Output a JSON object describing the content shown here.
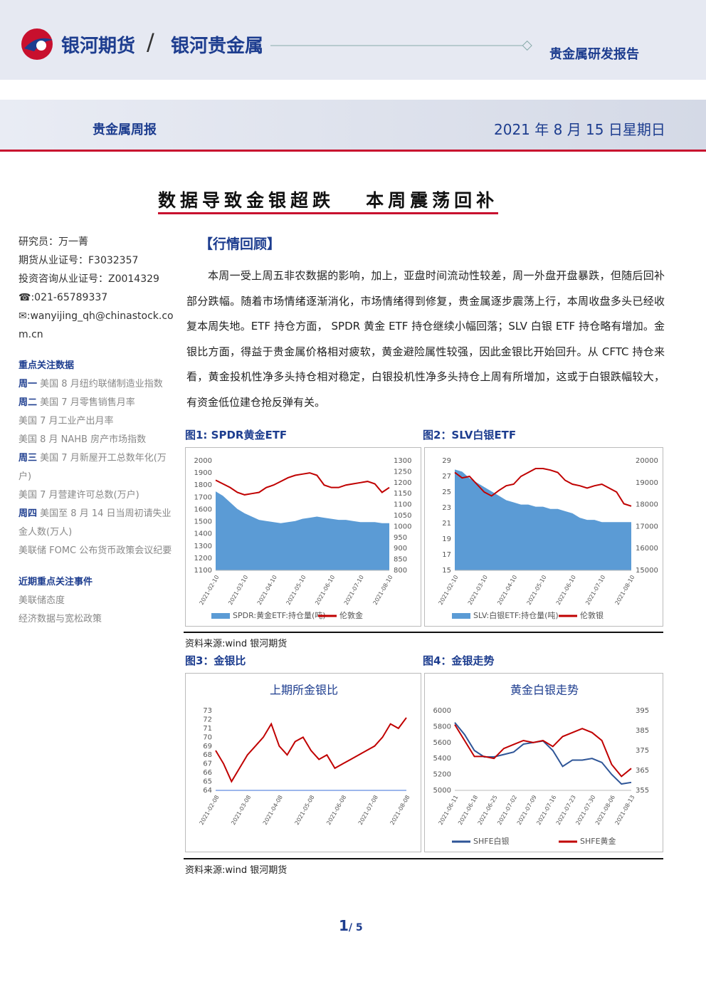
{
  "header": {
    "brand": "银河期货",
    "sub_brand": "银河贵金属",
    "report_type": "贵金属研发报告",
    "section": "贵金属周报",
    "date": "2021 年 8 月 15 日星期日"
  },
  "title": "数据导致金银超跌   本周震荡回补",
  "sidebar": {
    "info": [
      "研究员：万一菁",
      "期货从业证号：F3032357",
      "投资咨询从业证号：Z0014329",
      "☎:021-65789337",
      "✉:wanyijing_qh@chinastock.com.cn"
    ],
    "key_data_heading": "重点关注数据",
    "key_data": [
      {
        "day": "周一",
        "text": "美国 8 月纽约联储制造业指数"
      },
      {
        "day": "周二",
        "text": "美国 7 月零售销售月率"
      },
      {
        "text": "美国 7 月工业产出月率"
      },
      {
        "text": "美国 8 月 NAHB 房产市场指数"
      },
      {
        "day": "周三",
        "text": "美国 7 月新屋开工总数年化(万户)"
      },
      {
        "text": "美国 7 月营建许可总数(万户)"
      },
      {
        "day": "周四",
        "text": "美国至 8 月 14 日当周初请失业金人数(万人)"
      },
      {
        "text": "美联储 FOMC 公布货币政策会议纪要"
      }
    ],
    "events_heading": "近期重点关注事件",
    "events": [
      "美联储态度",
      "经济数据与宽松政策"
    ]
  },
  "section_heading": "【行情回顾】",
  "paragraph": "本周一受上周五非农数据的影响，加上，亚盘时间流动性较差，周一外盘开盘暴跌，但随后回补部分跌幅。随着市场情绪逐渐消化，市场情绪得到修复，贵金属逐步震荡上行，本周收盘多头已经收复本周失地。ETF 持仓方面， SPDR 黄金 ETF 持仓继续小幅回落；SLV 白银 ETF 持仓略有增加。金银比方面，得益于贵金属价格相对疲软，黄金避险属性较强，因此金银比开始回升。从 CFTC 持仓来看，黄金投机性净多头持仓相对稳定，白银投机性净多头持仓上周有所增加，这或于白银跌幅较大，有资金低位建仓抢反弹有关。",
  "figures": [
    {
      "caption": "图1: SPDR黄金ETF",
      "chart_data": {
        "type": "combo",
        "legend": "bottom",
        "categories": [
          "2021-02-10",
          null,
          null,
          null,
          "2021-03-10",
          null,
          null,
          null,
          "2021-04-10",
          null,
          null,
          null,
          "2021-05-10",
          null,
          null,
          null,
          "2021-06-10",
          null,
          null,
          null,
          "2021-07-10",
          null,
          null,
          null,
          "2021-08-10"
        ],
        "ylim": [
          1100,
          2000
        ],
        "yticks": [
          1100,
          1200,
          1300,
          1400,
          1500,
          1600,
          1700,
          1800,
          1900,
          2000
        ],
        "y2lim": [
          800,
          1300
        ],
        "y2ticks": [
          800,
          850,
          900,
          950,
          1000,
          1050,
          1100,
          1150,
          1200,
          1250,
          1300
        ],
        "series": [
          {
            "name": "SPDR:黄金ETF:持仓量(吨)",
            "type": "area",
            "axis": "y2",
            "color": "#5b9bd5",
            "values": [
              1160,
              1140,
              1110,
              1080,
              1060,
              1045,
              1030,
              1025,
              1020,
              1015,
              1020,
              1025,
              1035,
              1040,
              1045,
              1040,
              1035,
              1030,
              1030,
              1025,
              1020,
              1020,
              1020,
              1015,
              1015
            ]
          },
          {
            "name": "伦敦金",
            "type": "line",
            "color": "#c00000",
            "values": [
              1840,
              1810,
              1780,
              1740,
              1720,
              1730,
              1740,
              1780,
              1800,
              1830,
              1860,
              1880,
              1890,
              1900,
              1880,
              1800,
              1780,
              1780,
              1800,
              1810,
              1820,
              1830,
              1810,
              1740,
              1780
            ]
          }
        ]
      }
    },
    {
      "caption": "图2：SLV白银ETF",
      "chart_data": {
        "type": "combo",
        "legend": "bottom",
        "categories": [
          "2021-02-10",
          null,
          null,
          null,
          "2021-03-10",
          null,
          null,
          null,
          "2021-04-10",
          null,
          null,
          null,
          "2021-05-10",
          null,
          null,
          null,
          "2021-06-10",
          null,
          null,
          null,
          "2021-07-10",
          null,
          null,
          null,
          "2021-08-10"
        ],
        "ylim": [
          15,
          29
        ],
        "yticks": [
          15,
          17,
          19,
          21,
          23,
          25,
          27,
          29
        ],
        "y2lim": [
          15000,
          20000
        ],
        "y2ticks": [
          15000,
          16000,
          17000,
          18000,
          19000,
          20000
        ],
        "series": [
          {
            "name": "SLV:白银ETF:持仓量(吨)",
            "type": "area",
            "axis": "y2",
            "color": "#5b9bd5",
            "values": [
              19600,
              19500,
              19200,
              19000,
              18800,
              18600,
              18400,
              18200,
              18100,
              18000,
              18000,
              17900,
              17900,
              17800,
              17800,
              17700,
              17600,
              17400,
              17300,
              17300,
              17200,
              17200,
              17200,
              17200,
              17200
            ]
          },
          {
            "name": "伦敦银",
            "type": "line",
            "color": "#c00000",
            "values": [
              27.5,
              26.8,
              27.0,
              26.0,
              25.0,
              24.5,
              25.2,
              25.8,
              26.0,
              27.0,
              27.5,
              28.0,
              28.0,
              27.8,
              27.5,
              26.5,
              26.0,
              25.8,
              25.5,
              25.8,
              26.0,
              25.5,
              25.0,
              23.5,
              23.2
            ]
          }
        ]
      }
    },
    {
      "caption": "图3：金银比",
      "chart_data": {
        "type": "combo",
        "title": "上期所金银比",
        "categories": [
          "2021-02-08",
          null,
          null,
          null,
          "2021-03-08",
          null,
          null,
          null,
          "2021-04-08",
          null,
          null,
          null,
          "2021-05-08",
          null,
          null,
          null,
          "2021-06-08",
          null,
          null,
          null,
          "2021-07-08",
          null,
          null,
          null,
          "2021-08-08"
        ],
        "ylim": [
          64,
          73
        ],
        "yticks": [
          64,
          65,
          66,
          67,
          68,
          69,
          70,
          71,
          72,
          73
        ],
        "series": [
          {
            "type": "line",
            "color": "#c00000",
            "values": [
              68.5,
              67,
              65,
              66.5,
              68,
              69,
              70,
              71.5,
              69,
              68,
              69.5,
              70,
              68.5,
              67.5,
              68,
              66.5,
              67,
              67.5,
              68,
              68.5,
              69,
              70,
              71.5,
              71,
              72.2
            ]
          }
        ]
      }
    },
    {
      "caption": "图4：金银走势",
      "chart_data": {
        "type": "combo",
        "title": "黄金白银走势",
        "legend": "bottom",
        "categories": [
          "2021-06-11",
          null,
          "2021-06-18",
          null,
          "2021-06-25",
          null,
          "2021-07-02",
          null,
          "2021-07-09",
          null,
          "2021-07-16",
          null,
          "2021-07-23",
          null,
          "2021-07-30",
          null,
          "2021-08-06",
          null,
          "2021-08-13"
        ],
        "ylim": [
          5000,
          6000
        ],
        "yticks": [
          5000,
          5200,
          5400,
          5600,
          5800,
          6000
        ],
        "y2lim": [
          355,
          395
        ],
        "y2ticks": [
          355,
          365,
          375,
          385,
          395
        ],
        "series": [
          {
            "name": "SHFE白银",
            "type": "line",
            "color": "#2e5597",
            "values": [
              5850,
              5700,
              5500,
              5420,
              5420,
              5450,
              5480,
              5580,
              5600,
              5620,
              5500,
              5300,
              5380,
              5380,
              5400,
              5350,
              5200,
              5080,
              5100
            ]
          },
          {
            "name": "SHFE黄金",
            "type": "line",
            "axis": "y2",
            "color": "#c00000",
            "values": [
              388,
              380,
              372,
              372,
              371,
              376,
              378,
              380,
              379,
              380,
              377,
              382,
              384,
              386,
              384,
              380,
              368,
              362,
              366
            ]
          }
        ]
      }
    }
  ],
  "sources": [
    "资料来源:wind    银河期货",
    "资料来源:wind    银河期货"
  ],
  "footer": {
    "page": "1",
    "total": "/ 5"
  }
}
